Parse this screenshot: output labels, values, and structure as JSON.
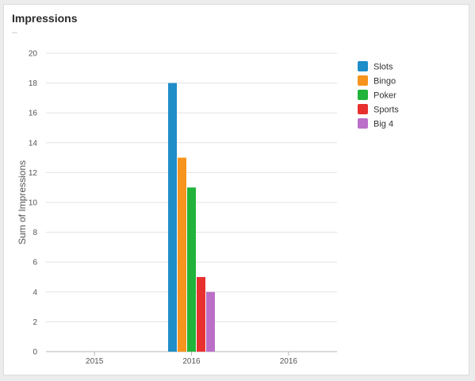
{
  "card": {
    "title": "Impressions",
    "subtitle": "–"
  },
  "chart_data": {
    "type": "bar",
    "title": "",
    "xlabel": "",
    "ylabel": "Sum of Impressions",
    "ylim": [
      0,
      20
    ],
    "yticks": [
      0,
      2,
      4,
      6,
      8,
      10,
      12,
      14,
      16,
      18,
      20
    ],
    "grid": true,
    "legend_position": "right",
    "categories": [
      "2015",
      "2016",
      "2016"
    ],
    "series": [
      {
        "name": "Slots",
        "color": "#1f8dc8",
        "values": [
          null,
          18,
          null
        ]
      },
      {
        "name": "Bingo",
        "color": "#f7941d",
        "values": [
          null,
          13,
          null
        ]
      },
      {
        "name": "Poker",
        "color": "#22b33a",
        "values": [
          null,
          11,
          null
        ]
      },
      {
        "name": "Sports",
        "color": "#e8312f",
        "values": [
          null,
          5,
          null
        ]
      },
      {
        "name": "Big 4",
        "color": "#bb6fc8",
        "values": [
          null,
          4,
          null
        ]
      }
    ]
  }
}
